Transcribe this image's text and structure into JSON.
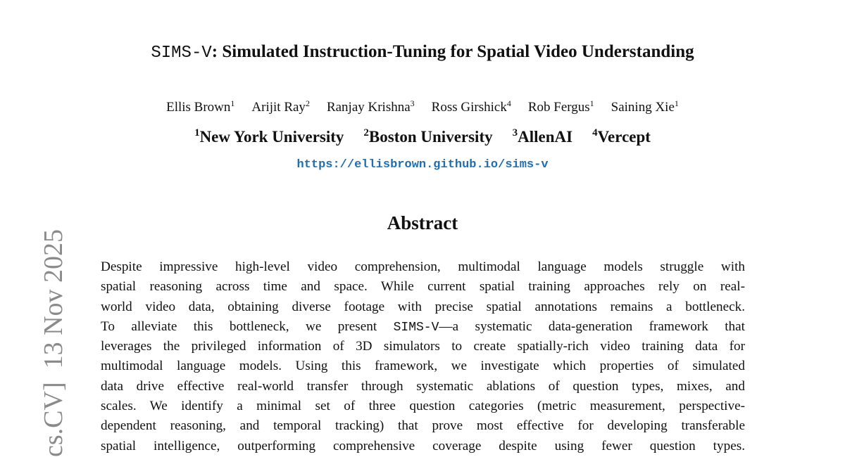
{
  "header": {
    "title": {
      "code": "SIMS-V",
      "text": ": Simulated Instruction-Tuning for Spatial Video Understanding"
    },
    "authors": [
      {
        "name": "Ellis Brown",
        "sup": "1"
      },
      {
        "name": "Arijit Ray",
        "sup": "2"
      },
      {
        "name": "Ranjay Krishna",
        "sup": "3"
      },
      {
        "name": "Ross Girshick",
        "sup": "4"
      },
      {
        "name": "Rob Fergus",
        "sup": "1"
      },
      {
        "name": "Saining Xie",
        "sup": "1"
      }
    ],
    "affiliations": [
      {
        "sup": "1",
        "name": "New York University"
      },
      {
        "sup": "2",
        "name": "Boston University"
      },
      {
        "sup": "3",
        "name": "AllenAI"
      },
      {
        "sup": "4",
        "name": "Vercept"
      }
    ],
    "url": "https://ellisbrown.github.io/sims-v"
  },
  "abstract": {
    "heading": "Abstract",
    "lines": [
      "Despite impressive high-level video comprehension, multimodal language models struggle with",
      "spatial reasoning across time and space. While current spatial training approaches rely on real-",
      "world video data, obtaining diverse footage with precise spatial annotations remains a bottleneck.",
      {
        "before": "To alleviate this bottleneck, we present ",
        "code": "SIMS-V",
        "after": "—a systematic data-generation framework that"
      },
      "leverages the privileged information of 3D simulators to create spatially-rich video training data for",
      "multimodal language models. Using this framework, we investigate which properties of simulated",
      "data drive effective real-world transfer through systematic ablations of question types, mixes, and",
      "scales. We identify a minimal set of three question categories (metric measurement, perspective-",
      "dependent reasoning, and temporal tracking) that prove most effective for developing transferable",
      "spatial intelligence, outperforming comprehensive coverage despite using fewer question types."
    ]
  },
  "side_stamp": "cs.CV]  13 Nov 2025"
}
